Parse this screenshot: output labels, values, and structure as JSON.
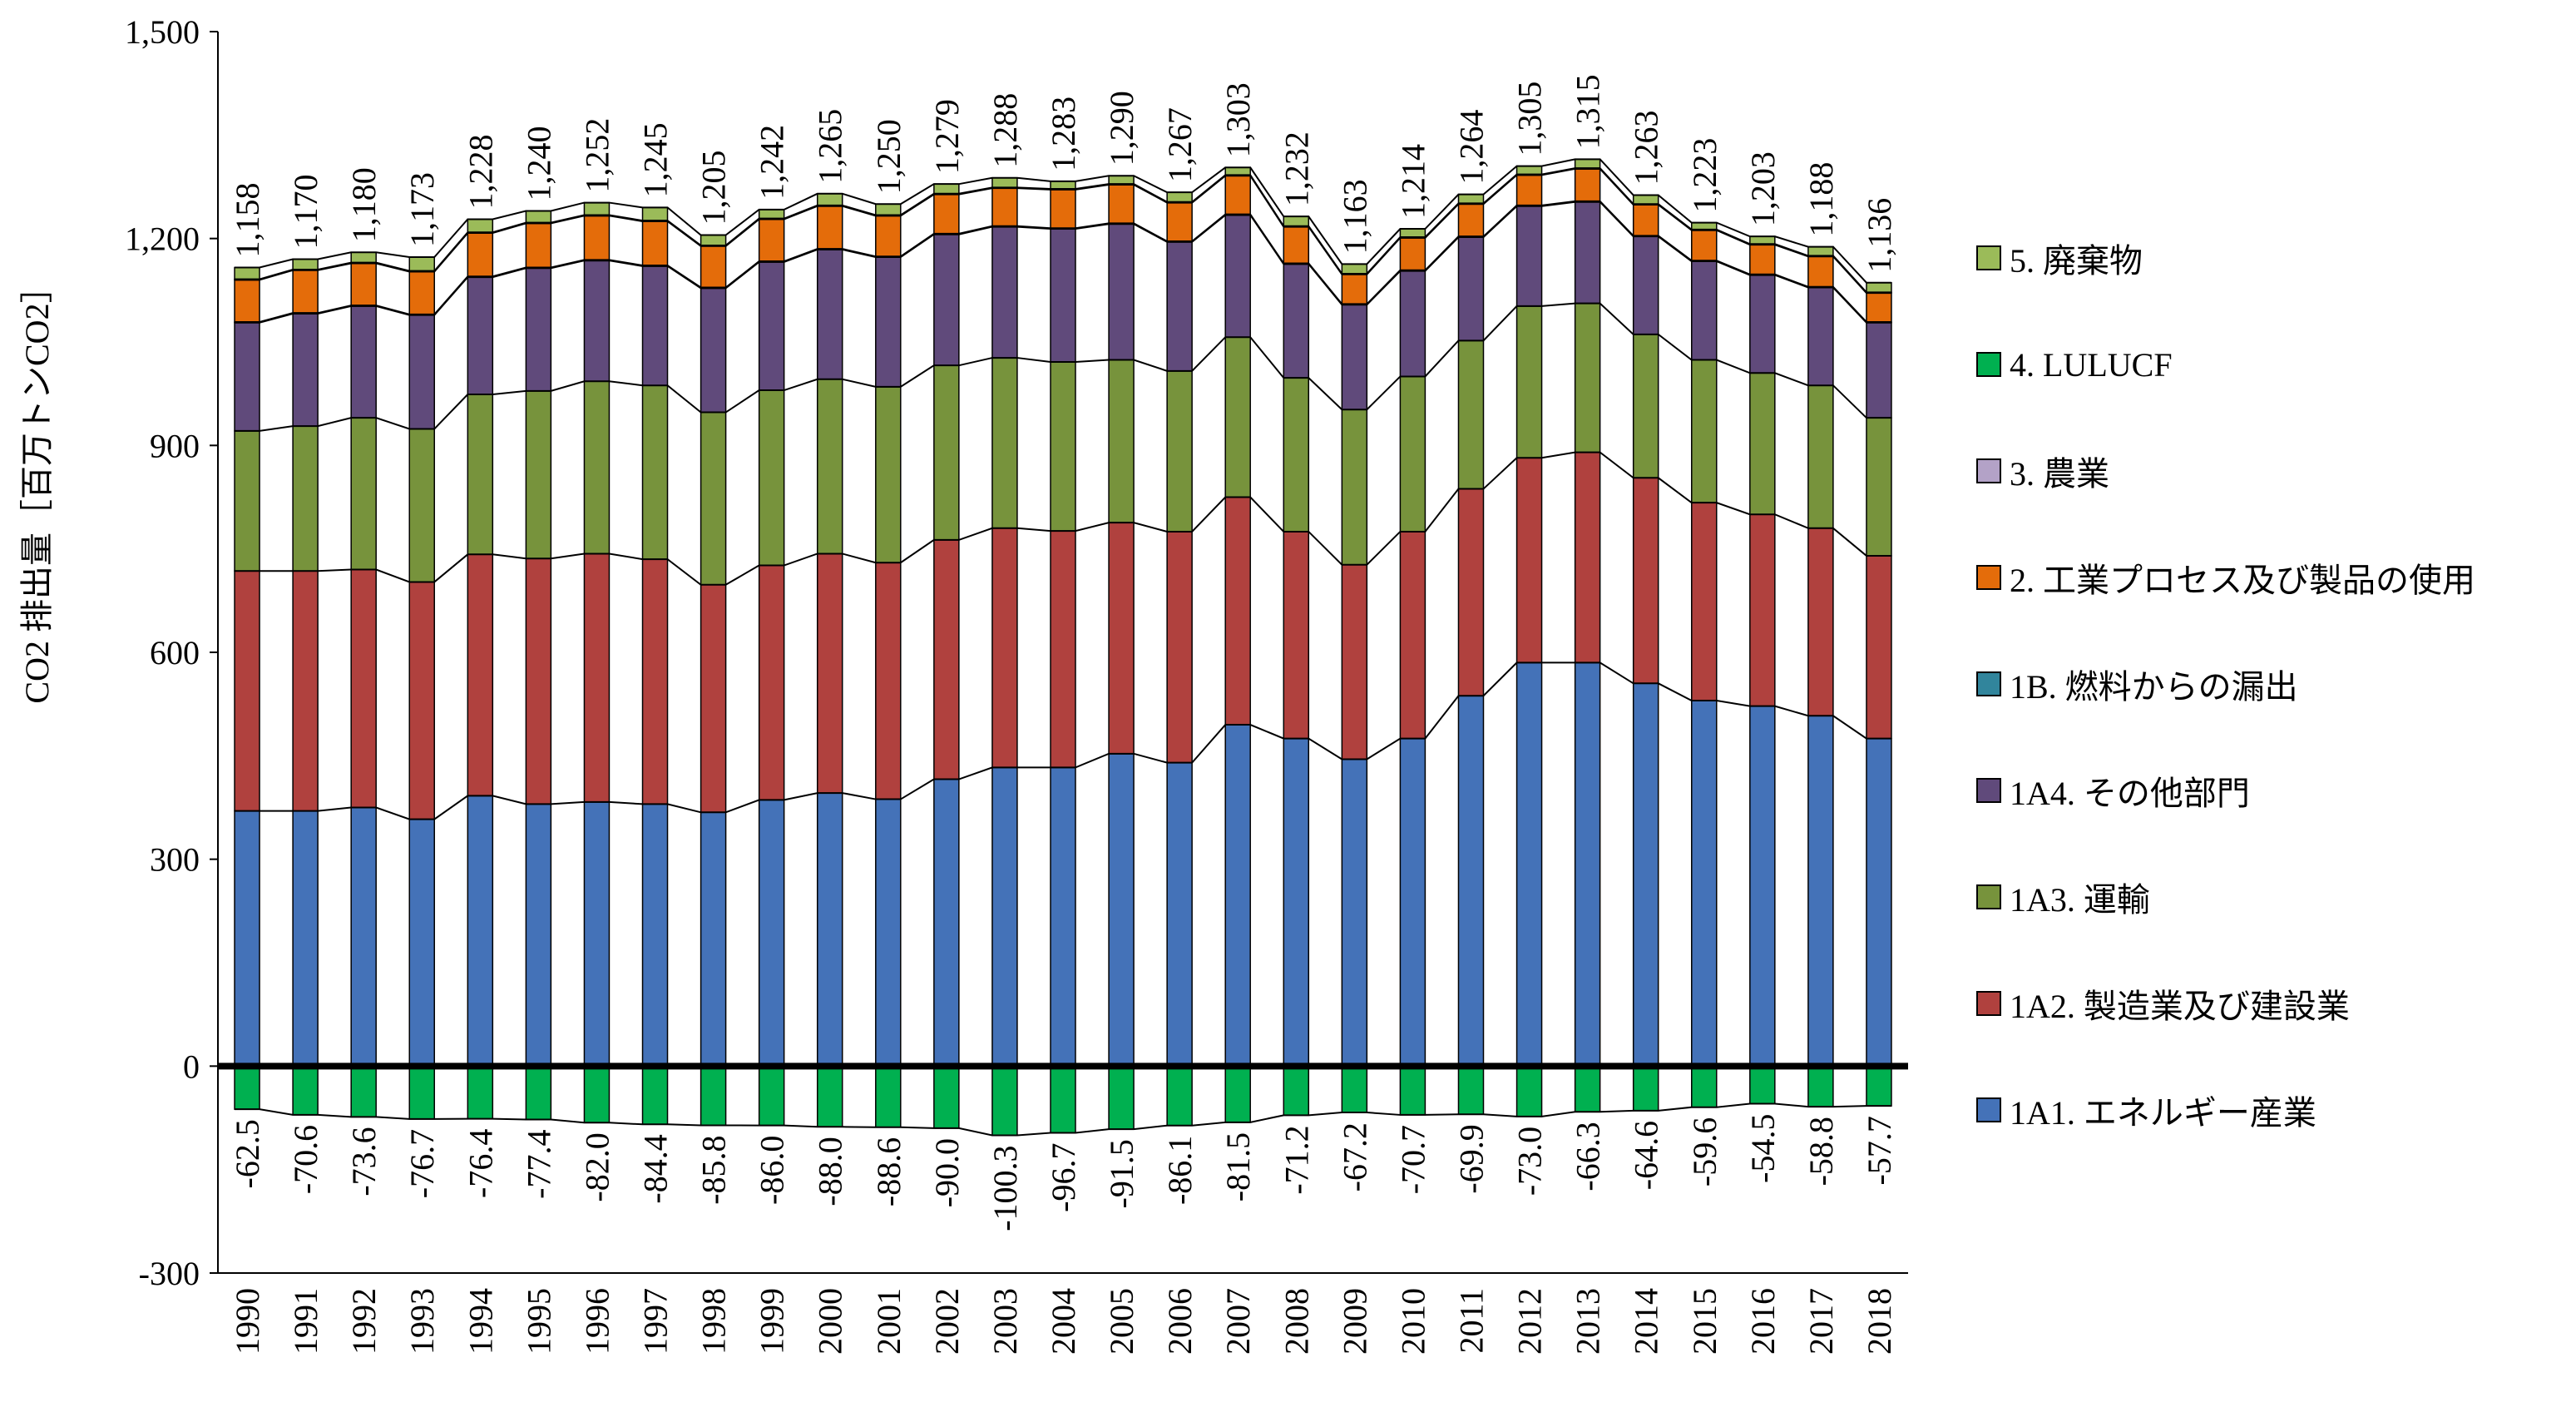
{
  "chart_data": {
    "type": "bar",
    "stacked": true,
    "ylabel": "CO2 排出量［百万トンCO2］",
    "ylim": [
      -300,
      1500
    ],
    "yticks": [
      "-300",
      "0",
      "300",
      "600",
      "900",
      "1,200",
      "1,500"
    ],
    "yticks_values": [
      -300,
      0,
      300,
      600,
      900,
      1200,
      1500
    ],
    "legend_position": "right",
    "categories": [
      "1990",
      "1991",
      "1992",
      "1993",
      "1994",
      "1995",
      "1996",
      "1997",
      "1998",
      "1999",
      "2000",
      "2001",
      "2002",
      "2003",
      "2004",
      "2005",
      "2006",
      "2007",
      "2008",
      "2009",
      "2010",
      "2011",
      "2012",
      "2013",
      "2014",
      "2015",
      "2016",
      "2017",
      "2018"
    ],
    "totals": [
      "1,158",
      "1,170",
      "1,180",
      "1,173",
      "1,228",
      "1,240",
      "1,252",
      "1,245",
      "1,205",
      "1,242",
      "1,265",
      "1,250",
      "1,279",
      "1,288",
      "1,283",
      "1,290",
      "1,267",
      "1,303",
      "1,232",
      "1,163",
      "1,214",
      "1,264",
      "1,305",
      "1,315",
      "1,263",
      "1,223",
      "1,203",
      "1,188",
      "1,136"
    ],
    "lulucf_labels": [
      "-62.5",
      "-70.6",
      "-73.6",
      "-76.7",
      "-76.4",
      "-77.4",
      "-82.0",
      "-84.4",
      "-85.8",
      "-86.0",
      "-88.0",
      "-88.6",
      "-90.0",
      "-100.3",
      "-96.7",
      "-91.5",
      "-86.1",
      "-81.5",
      "-71.2",
      "-67.2",
      "-70.7",
      "-69.9",
      "-73.0",
      "-66.3",
      "-64.6",
      "-59.6",
      "-54.5",
      "-58.8",
      "-57.7"
    ],
    "series": [
      {
        "name": "1A1. エネルギー産業",
        "color": "#4472b8",
        "values": [
          370,
          370,
          375,
          358,
          392,
          380,
          383,
          380,
          368,
          386,
          396,
          387,
          416,
          433,
          433,
          453,
          440,
          495,
          475,
          445,
          475,
          537,
          585,
          585,
          555,
          530,
          522,
          508,
          475
        ]
      },
      {
        "name": "1A2. 製造業及び建設業",
        "color": "#b0413e",
        "values": [
          348,
          348,
          345,
          344,
          350,
          356,
          360,
          355,
          330,
          340,
          347,
          343,
          347,
          347,
          343,
          335,
          335,
          330,
          300,
          282,
          300,
          300,
          297,
          305,
          298,
          287,
          278,
          272,
          265
        ]
      },
      {
        "name": "1A3. 運輸",
        "color": "#77933c",
        "values": [
          203,
          210,
          220,
          222,
          232,
          243,
          250,
          252,
          250,
          254,
          253,
          255,
          253,
          247,
          245,
          236,
          233,
          232,
          223,
          225,
          225,
          215,
          220,
          216,
          208,
          207,
          205,
          207,
          200
        ]
      },
      {
        "name": "1A4. その他部門",
        "color": "#604a7b",
        "values": [
          157,
          163,
          162,
          165,
          170,
          178,
          175,
          173,
          180,
          186,
          188,
          188,
          190,
          190,
          193,
          197,
          187,
          177,
          165,
          152,
          153,
          150,
          145,
          147,
          142,
          143,
          142,
          142,
          138
        ]
      },
      {
        "name": "1B. 燃料からの漏出",
        "color": "#31859c",
        "values": [
          1,
          1,
          1,
          1,
          1,
          1,
          1,
          1,
          1,
          1,
          1,
          1,
          1,
          1,
          1,
          1,
          1,
          1,
          1,
          1,
          1,
          1,
          1,
          1,
          1,
          1,
          1,
          1,
          1
        ]
      },
      {
        "name": "2. 工業プロセス及び製品の使用",
        "color": "#e46c0a",
        "values": [
          61,
          62,
          61,
          62,
          63,
          64,
          64,
          64,
          60,
          61,
          62,
          59,
          57,
          55,
          56,
          56,
          56,
          56,
          53,
          43,
          47,
          47,
          44,
          47,
          45,
          44,
          43,
          44,
          42
        ]
      },
      {
        "name": "3. 農業",
        "color": "#b3a2c7",
        "values": [
          1,
          1,
          1,
          1,
          1,
          1,
          1,
          1,
          1,
          1,
          1,
          1,
          1,
          1,
          1,
          1,
          1,
          1,
          1,
          1,
          1,
          1,
          1,
          1,
          1,
          1,
          1,
          1,
          1
        ]
      },
      {
        "name": "4. LULUCF",
        "color": "#00b050",
        "values": [
          -62.5,
          -70.6,
          -73.6,
          -76.7,
          -76.4,
          -77.4,
          -82.0,
          -84.4,
          -85.8,
          -86.0,
          -88.0,
          -88.6,
          -90.0,
          -100.3,
          -96.7,
          -91.5,
          -86.1,
          -81.5,
          -71.2,
          -67.2,
          -70.7,
          -69.9,
          -73.0,
          -66.3,
          -64.6,
          -59.6,
          -54.5,
          -58.8,
          -57.7
        ]
      },
      {
        "name": "5. 廃棄物",
        "color": "#9bbb59",
        "values": [
          17,
          15,
          15,
          20,
          19,
          17,
          18,
          19,
          15,
          13,
          17,
          16,
          14,
          14,
          11,
          12,
          14,
          11,
          14,
          14,
          12,
          13,
          12,
          13,
          13,
          10,
          11,
          13,
          14
        ]
      }
    ]
  }
}
